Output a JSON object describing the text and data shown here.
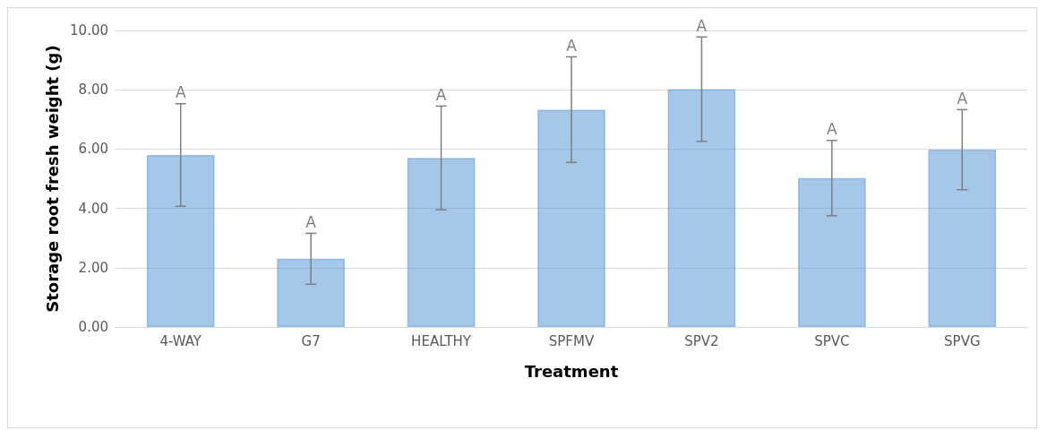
{
  "chart_data": {
    "type": "bar",
    "xlabel": "Treatment",
    "ylabel": "Storage root fresh weight (g)",
    "categories": [
      "4-WAY",
      "G7",
      "HEALTHY",
      "SPFMV",
      "SPV2",
      "SPVC",
      "SPVG"
    ],
    "values": [
      5.8,
      2.3,
      5.7,
      7.33,
      8.02,
      5.02,
      5.98
    ],
    "errors": [
      1.73,
      0.86,
      1.75,
      1.78,
      1.76,
      1.27,
      1.35
    ],
    "color": "#5b9bd5",
    "ylim": [
      0,
      10
    ],
    "yticks": [
      {
        "value": 0,
        "label": "0.00"
      },
      {
        "value": 2,
        "label": "2.00"
      },
      {
        "value": 4,
        "label": "4.00"
      },
      {
        "value": 6,
        "label": "6.00"
      },
      {
        "value": 8,
        "label": "8.00"
      },
      {
        "value": 10,
        "label": "10.00"
      }
    ],
    "grid": "y",
    "annotations": [
      {
        "text": "A",
        "x": "4-WAY",
        "y": 7.53
      },
      {
        "text": "A",
        "x": "G7",
        "y": 3.16
      },
      {
        "text": "A",
        "x": "HEALTHY",
        "y": 7.45
      },
      {
        "text": "A",
        "x": "SPFMV",
        "y": 9.11
      },
      {
        "text": "A",
        "x": "SPV2",
        "y": 9.78
      },
      {
        "text": "A",
        "x": "SPVC",
        "y": 6.29
      },
      {
        "text": "A",
        "x": "SPVG",
        "y": 7.33
      }
    ]
  }
}
